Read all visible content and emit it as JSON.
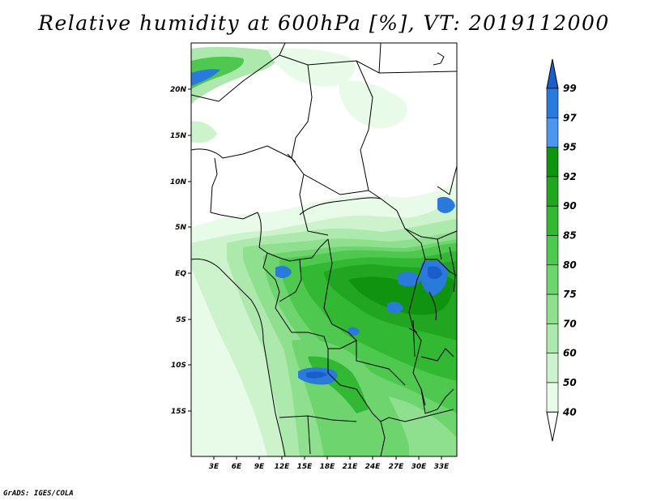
{
  "title": "Relative humidity at 600hPa [%], VT: 2019112000",
  "credit": "GrADS: IGES/COLA",
  "map": {
    "lat_labels": [
      "20N",
      "15N",
      "10N",
      "5N",
      "EQ",
      "5S",
      "10S",
      "15S"
    ],
    "lon_labels": [
      "3E",
      "6E",
      "9E",
      "12E",
      "15E",
      "18E",
      "21E",
      "24E",
      "27E",
      "30E",
      "33E"
    ]
  },
  "colorbar": {
    "levels": [
      "99",
      "97",
      "95",
      "92",
      "90",
      "85",
      "80",
      "75",
      "70",
      "60",
      "50",
      "40"
    ],
    "colors": [
      "#1a5fc9",
      "#2a7adc",
      "#4c96ee",
      "#109410",
      "#22a622",
      "#33b833",
      "#4ec84e",
      "#6ed56e",
      "#8ee08e",
      "#ade9ad",
      "#ccf3cc",
      "#e8fbe8"
    ]
  }
}
